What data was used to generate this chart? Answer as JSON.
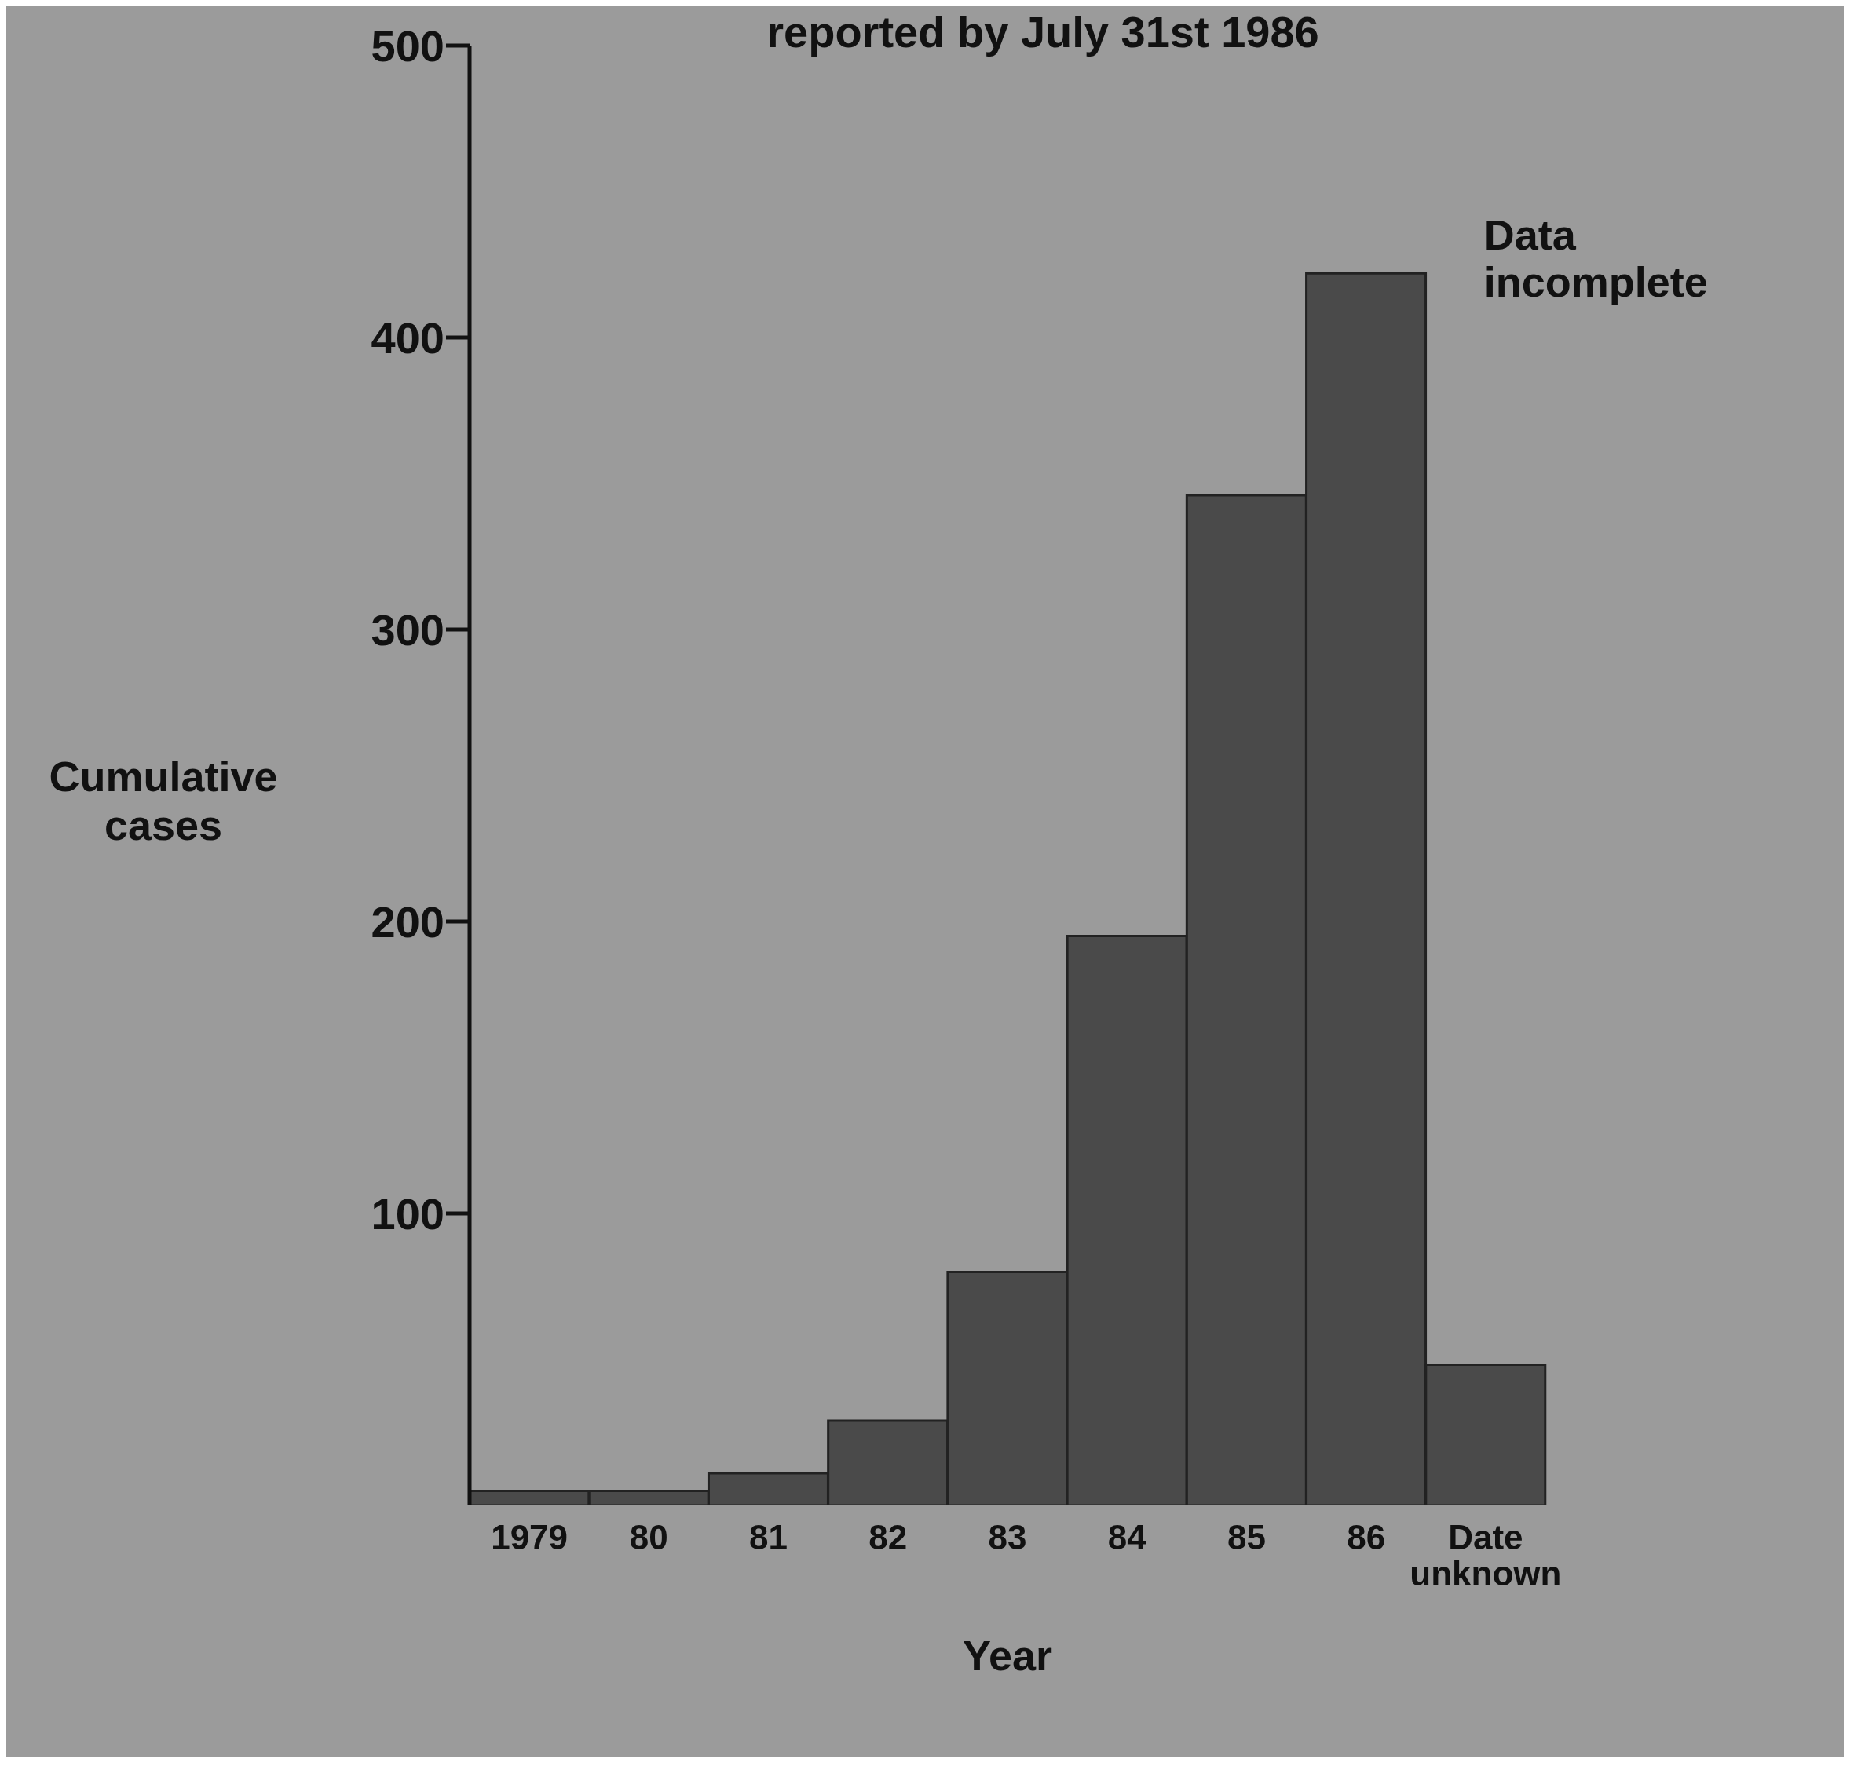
{
  "chart_data": {
    "type": "bar",
    "title": "reported by July 31st 1986",
    "xlabel": "Year",
    "ylabel": "Cumulative cases",
    "categories": [
      "1979",
      "80",
      "81",
      "82",
      "83",
      "84",
      "85",
      "86",
      "Date unknown"
    ],
    "values": [
      5,
      5,
      11,
      29,
      80,
      195,
      346,
      422,
      48
    ],
    "color": "#4a4a4a",
    "ylim": [
      0,
      500
    ],
    "yticks": [
      100,
      200,
      300,
      400,
      500
    ],
    "annotations": [
      {
        "text": "Data incomplete",
        "x": "86",
        "y": 422
      }
    ],
    "grid": false,
    "legend": false
  }
}
